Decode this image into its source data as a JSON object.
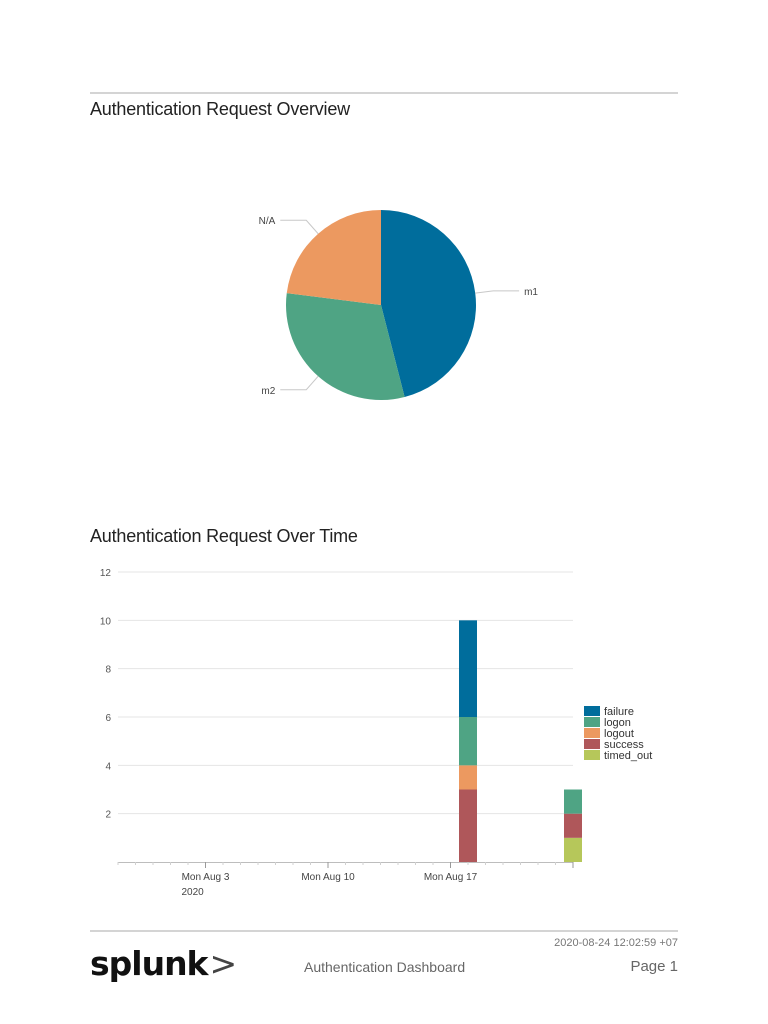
{
  "sections": {
    "overview_title": "Authentication Request Overview",
    "overtime_title": "Authentication Request Over Time"
  },
  "chart_data": [
    {
      "type": "pie",
      "title": "Authentication Request Overview",
      "slices": [
        {
          "label": "m1",
          "value": 46,
          "color": "#006d9c"
        },
        {
          "label": "m2",
          "value": 31,
          "color": "#4fa484"
        },
        {
          "label": "N/A",
          "value": 23,
          "color": "#ec9960"
        }
      ]
    },
    {
      "type": "bar",
      "stacked": true,
      "title": "Authentication Request Over Time",
      "xlabel": "",
      "ylabel": "",
      "ylim": [
        0,
        12
      ],
      "yticks": [
        2,
        4,
        6,
        8,
        10,
        12
      ],
      "grid": true,
      "legend_position": "right",
      "x_ticks": [
        {
          "label": "Mon Aug 3",
          "sublabel": "2020",
          "date": "2020-08-03"
        },
        {
          "label": "Mon Aug 10",
          "sublabel": "",
          "date": "2020-08-10"
        },
        {
          "label": "Mon Aug 17",
          "sublabel": "",
          "date": "2020-08-17"
        }
      ],
      "x_range": [
        "2020-07-29",
        "2020-08-24"
      ],
      "categories": [
        "2020-08-18",
        "2020-08-24"
      ],
      "series": [
        {
          "name": "failure",
          "color": "#006d9c",
          "values": [
            4,
            0
          ]
        },
        {
          "name": "logon",
          "color": "#4fa484",
          "values": [
            2,
            1
          ]
        },
        {
          "name": "logout",
          "color": "#ec9960",
          "values": [
            1,
            0
          ]
        },
        {
          "name": "success",
          "color": "#af575a",
          "values": [
            3,
            1
          ]
        },
        {
          "name": "timed_out",
          "color": "#b6c75a",
          "values": [
            0,
            1
          ]
        }
      ]
    }
  ],
  "footer": {
    "timestamp": "2020-08-24 12:02:59 +07",
    "logo_text": "splunk",
    "logo_chevron": ">",
    "dashboard_name": "Authentication Dashboard",
    "page_label": "Page 1"
  }
}
